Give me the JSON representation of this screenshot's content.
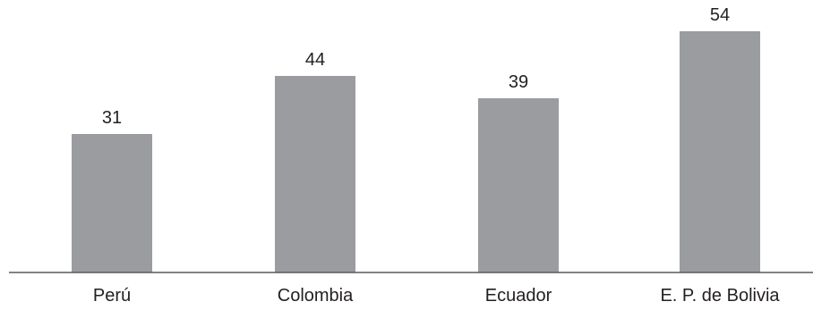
{
  "chart_data": {
    "type": "bar",
    "title": "",
    "xlabel": "",
    "ylabel": "",
    "categories": [
      "Perú",
      "Colombia",
      "Ecuador",
      "E. P. de Bolivia"
    ],
    "values": [
      31,
      44,
      39,
      54
    ],
    "data_labels": [
      "31",
      "44",
      "39",
      "54"
    ],
    "ylim": [
      0,
      60
    ],
    "grid": false,
    "legend": "none",
    "colors": {
      "bar": "#9b9c9f",
      "axis": "#555a5e",
      "text": "#231f20"
    }
  }
}
